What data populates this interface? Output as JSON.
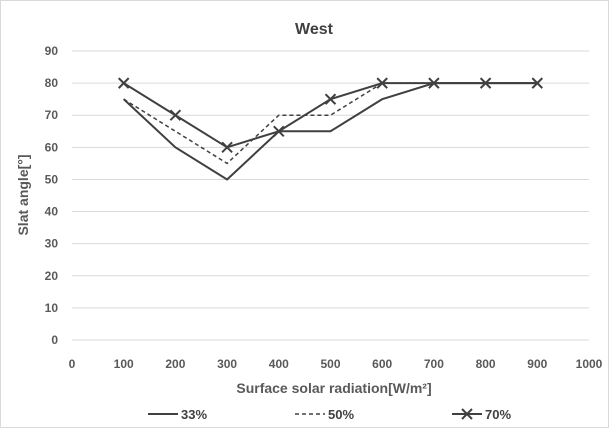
{
  "chart_data": {
    "type": "line",
    "title": "West",
    "xlabel": "Surface solar radiation[W/m²]",
    "ylabel": "Slat angle[°]",
    "xlim": [
      0,
      1000
    ],
    "ylim": [
      0,
      90
    ],
    "x_ticks": [
      0,
      100,
      200,
      300,
      400,
      500,
      600,
      700,
      800,
      900,
      1000
    ],
    "y_ticks": [
      0,
      10,
      20,
      30,
      40,
      50,
      60,
      70,
      80,
      90
    ],
    "grid": "horizontal",
    "legend_position": "bottom",
    "x": [
      100,
      200,
      300,
      400,
      500,
      600,
      700,
      800,
      900
    ],
    "series": [
      {
        "name": "33%",
        "style": "solid",
        "marker": "none",
        "values": [
          75,
          60,
          50,
          65,
          65,
          75,
          80,
          80,
          80
        ]
      },
      {
        "name": "50%",
        "style": "dashed",
        "marker": "none",
        "values": [
          75,
          65,
          55,
          70,
          70,
          80,
          80,
          80,
          80
        ]
      },
      {
        "name": "70%",
        "style": "solid",
        "marker": "x",
        "values": [
          80,
          70,
          60,
          65,
          75,
          80,
          80,
          80,
          80
        ]
      }
    ],
    "colors": {
      "line": "#404040",
      "grid": "#d9d9d9",
      "text": "#595959"
    }
  }
}
